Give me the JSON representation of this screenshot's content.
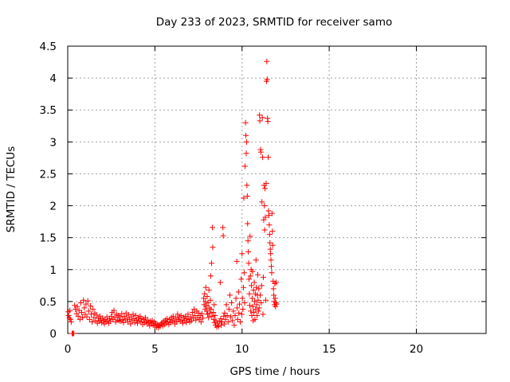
{
  "chart_data": {
    "type": "scatter",
    "title": "Day 233 of 2023, SRMTID for receiver samo",
    "xlabel": "GPS time / hours",
    "ylabel": "SRMTID / TECUs",
    "xlim": [
      0,
      24
    ],
    "ylim": [
      0,
      4.5
    ],
    "xticks": [
      0,
      5,
      10,
      15,
      20
    ],
    "xtick_labels": [
      "0",
      "5",
      "10",
      "15",
      "20"
    ],
    "yticks": [
      0,
      0.5,
      1,
      1.5,
      2,
      2.5,
      3,
      3.5,
      4,
      4.5
    ],
    "ytick_labels": [
      "0",
      "0.5",
      "1",
      "1.5",
      "2",
      "2.5",
      "3",
      "3.5",
      "4",
      "4.5"
    ],
    "grid": true,
    "marker": "+",
    "color": "#ff0000",
    "series": [
      {
        "name": "SRMTID",
        "points": [
          [
            0.03,
            0.34
          ],
          [
            0.05,
            0.28
          ],
          [
            0.1,
            0.24
          ],
          [
            0.12,
            0.36
          ],
          [
            0.15,
            0.22
          ],
          [
            0.2,
            0.18
          ],
          [
            0.25,
            0.0
          ],
          [
            0.3,
            0.0
          ],
          [
            0.35,
            0.0
          ],
          [
            0.4,
            0.44
          ],
          [
            0.45,
            0.38
          ],
          [
            0.5,
            0.31
          ],
          [
            0.55,
            0.42
          ],
          [
            0.6,
            0.27
          ],
          [
            0.65,
            0.36
          ],
          [
            0.7,
            0.22
          ],
          [
            0.75,
            0.48
          ],
          [
            0.8,
            0.33
          ],
          [
            0.85,
            0.25
          ],
          [
            0.9,
            0.52
          ],
          [
            0.95,
            0.4
          ],
          [
            1.0,
            0.3
          ],
          [
            1.05,
            0.46
          ],
          [
            1.1,
            0.26
          ],
          [
            1.15,
            0.51
          ],
          [
            1.2,
            0.35
          ],
          [
            1.25,
            0.22
          ],
          [
            1.3,
            0.43
          ],
          [
            1.35,
            0.3
          ],
          [
            1.4,
            0.18
          ],
          [
            1.45,
            0.38
          ],
          [
            1.5,
            0.25
          ],
          [
            1.55,
            0.32
          ],
          [
            1.6,
            0.2
          ],
          [
            1.65,
            0.29
          ],
          [
            1.7,
            0.16
          ],
          [
            1.75,
            0.24
          ],
          [
            1.8,
            0.19
          ],
          [
            1.85,
            0.27
          ],
          [
            1.9,
            0.21
          ],
          [
            1.95,
            0.17
          ],
          [
            2.0,
            0.24
          ],
          [
            2.05,
            0.2
          ],
          [
            2.1,
            0.15
          ],
          [
            2.15,
            0.22
          ],
          [
            2.2,
            0.18
          ],
          [
            2.25,
            0.26
          ],
          [
            2.3,
            0.2
          ],
          [
            2.35,
            0.16
          ],
          [
            2.4,
            0.23
          ],
          [
            2.45,
            0.19
          ],
          [
            2.5,
            0.27
          ],
          [
            2.55,
            0.33
          ],
          [
            2.6,
            0.22
          ],
          [
            2.65,
            0.36
          ],
          [
            2.7,
            0.25
          ],
          [
            2.75,
            0.18
          ],
          [
            2.8,
            0.3
          ],
          [
            2.85,
            0.21
          ],
          [
            2.9,
            0.28
          ],
          [
            2.95,
            0.2
          ],
          [
            3.0,
            0.26
          ],
          [
            3.05,
            0.19
          ],
          [
            3.1,
            0.31
          ],
          [
            3.15,
            0.22
          ],
          [
            3.2,
            0.17
          ],
          [
            3.25,
            0.27
          ],
          [
            3.3,
            0.21
          ],
          [
            3.35,
            0.32
          ],
          [
            3.4,
            0.24
          ],
          [
            3.45,
            0.18
          ],
          [
            3.5,
            0.29
          ],
          [
            3.55,
            0.22
          ],
          [
            3.6,
            0.15
          ],
          [
            3.65,
            0.26
          ],
          [
            3.7,
            0.2
          ],
          [
            3.75,
            0.3
          ],
          [
            3.8,
            0.23
          ],
          [
            3.85,
            0.17
          ],
          [
            3.9,
            0.28
          ],
          [
            3.95,
            0.21
          ],
          [
            4.0,
            0.16
          ],
          [
            4.05,
            0.25
          ],
          [
            4.1,
            0.2
          ],
          [
            4.15,
            0.27
          ],
          [
            4.2,
            0.18
          ],
          [
            4.25,
            0.23
          ],
          [
            4.3,
            0.14
          ],
          [
            4.35,
            0.22
          ],
          [
            4.4,
            0.17
          ],
          [
            4.45,
            0.25
          ],
          [
            4.5,
            0.19
          ],
          [
            4.55,
            0.15
          ],
          [
            4.6,
            0.21
          ],
          [
            4.65,
            0.17
          ],
          [
            4.7,
            0.12
          ],
          [
            4.75,
            0.19
          ],
          [
            4.8,
            0.15
          ],
          [
            4.85,
            0.2
          ],
          [
            4.9,
            0.13
          ],
          [
            4.95,
            0.18
          ],
          [
            5.0,
            0.12
          ],
          [
            5.05,
            0.16
          ],
          [
            5.1,
            0.1
          ],
          [
            5.15,
            0.14
          ],
          [
            5.2,
            0.09
          ],
          [
            5.25,
            0.13
          ],
          [
            5.3,
            0.11
          ],
          [
            5.35,
            0.15
          ],
          [
            5.4,
            0.17
          ],
          [
            5.45,
            0.12
          ],
          [
            5.5,
            0.19
          ],
          [
            5.55,
            0.14
          ],
          [
            5.6,
            0.21
          ],
          [
            5.65,
            0.16
          ],
          [
            5.7,
            0.23
          ],
          [
            5.75,
            0.18
          ],
          [
            5.8,
            0.14
          ],
          [
            5.85,
            0.22
          ],
          [
            5.9,
            0.17
          ],
          [
            5.95,
            0.25
          ],
          [
            6.0,
            0.19
          ],
          [
            6.05,
            0.27
          ],
          [
            6.1,
            0.21
          ],
          [
            6.15,
            0.15
          ],
          [
            6.2,
            0.24
          ],
          [
            6.25,
            0.18
          ],
          [
            6.3,
            0.3
          ],
          [
            6.35,
            0.22
          ],
          [
            6.4,
            0.26
          ],
          [
            6.45,
            0.19
          ],
          [
            6.5,
            0.28
          ],
          [
            6.55,
            0.21
          ],
          [
            6.6,
            0.16
          ],
          [
            6.65,
            0.25
          ],
          [
            6.7,
            0.2
          ],
          [
            6.75,
            0.27
          ],
          [
            6.8,
            0.17
          ],
          [
            6.85,
            0.23
          ],
          [
            6.9,
            0.3
          ],
          [
            6.95,
            0.22
          ],
          [
            7.0,
            0.18
          ],
          [
            7.05,
            0.26
          ],
          [
            7.1,
            0.2
          ],
          [
            7.15,
            0.33
          ],
          [
            7.2,
            0.24
          ],
          [
            7.25,
            0.38
          ],
          [
            7.3,
            0.28
          ],
          [
            7.35,
            0.21
          ],
          [
            7.4,
            0.35
          ],
          [
            7.45,
            0.25
          ],
          [
            7.5,
            0.32
          ],
          [
            7.55,
            0.22
          ],
          [
            7.6,
            0.28
          ],
          [
            7.65,
            0.18
          ],
          [
            7.7,
            0.31
          ],
          [
            7.75,
            0.24
          ],
          [
            7.8,
            0.55
          ],
          [
            7.82,
            0.45
          ],
          [
            7.85,
            0.62
          ],
          [
            7.88,
            0.38
          ],
          [
            7.9,
            0.5
          ],
          [
            7.92,
            0.72
          ],
          [
            7.95,
            0.43
          ],
          [
            7.98,
            0.35
          ],
          [
            8.0,
            0.58
          ],
          [
            8.02,
            0.3
          ],
          [
            8.05,
            0.48
          ],
          [
            8.08,
            0.25
          ],
          [
            8.1,
            0.68
          ],
          [
            8.12,
            0.4
          ],
          [
            8.15,
            0.32
          ],
          [
            8.18,
            0.52
          ],
          [
            8.2,
            0.9
          ],
          [
            8.22,
            0.38
          ],
          [
            8.25,
            1.1
          ],
          [
            8.27,
            0.27
          ],
          [
            8.3,
            1.66
          ],
          [
            8.32,
            1.35
          ],
          [
            8.35,
            0.33
          ],
          [
            8.38,
            0.22
          ],
          [
            8.4,
            0.45
          ],
          [
            8.42,
            0.17
          ],
          [
            8.45,
            0.28
          ],
          [
            8.48,
            0.13
          ],
          [
            8.5,
            0.2
          ],
          [
            8.55,
            0.1
          ],
          [
            8.6,
            0.16
          ],
          [
            8.65,
            0.11
          ],
          [
            8.7,
            0.19
          ],
          [
            8.75,
            0.8
          ],
          [
            8.78,
            0.23
          ],
          [
            8.8,
            0.13
          ],
          [
            8.85,
            0.18
          ],
          [
            8.9,
            1.66
          ],
          [
            8.92,
            1.53
          ],
          [
            8.95,
            0.27
          ],
          [
            8.98,
            0.15
          ],
          [
            9.0,
            0.32
          ],
          [
            9.05,
            0.22
          ],
          [
            9.1,
            0.45
          ],
          [
            9.15,
            0.28
          ],
          [
            9.2,
            0.18
          ],
          [
            9.25,
            0.38
          ],
          [
            9.3,
            0.6
          ],
          [
            9.35,
            0.26
          ],
          [
            9.4,
            0.48
          ],
          [
            9.45,
            0.2
          ],
          [
            9.5,
            0.35
          ],
          [
            9.55,
            0.13
          ],
          [
            9.6,
            0.28
          ],
          [
            9.65,
            0.55
          ],
          [
            9.7,
            1.13
          ],
          [
            9.72,
            0.4
          ],
          [
            9.75,
            0.22
          ],
          [
            9.8,
            0.65
          ],
          [
            9.82,
            0.32
          ],
          [
            9.85,
            0.46
          ],
          [
            9.9,
            0.18
          ],
          [
            9.95,
            0.85
          ],
          [
            9.98,
            0.3
          ],
          [
            10.0,
            1.25
          ],
          [
            10.02,
            0.55
          ],
          [
            10.05,
            0.38
          ],
          [
            10.08,
            0.72
          ],
          [
            10.1,
            2.12
          ],
          [
            10.12,
            0.95
          ],
          [
            10.15,
            0.48
          ],
          [
            10.17,
            2.62
          ],
          [
            10.2,
            3.3
          ],
          [
            10.22,
            3.1
          ],
          [
            10.24,
            2.82
          ],
          [
            10.26,
            3.0
          ],
          [
            10.28,
            2.32
          ],
          [
            10.3,
            2.15
          ],
          [
            10.32,
            1.72
          ],
          [
            10.34,
            1.45
          ],
          [
            10.36,
            1.28
          ],
          [
            10.38,
            1.1
          ],
          [
            10.4,
            0.85
          ],
          [
            10.42,
            0.62
          ],
          [
            10.44,
            0.44
          ],
          [
            10.46,
            1.52
          ],
          [
            10.48,
            0.9
          ],
          [
            10.5,
            0.35
          ],
          [
            10.52,
            1.0
          ],
          [
            10.54,
            0.75
          ],
          [
            10.56,
            0.28
          ],
          [
            10.58,
            0.55
          ],
          [
            10.6,
            0.97
          ],
          [
            10.62,
            0.42
          ],
          [
            10.64,
            0.2
          ],
          [
            10.66,
            0.68
          ],
          [
            10.68,
            0.33
          ],
          [
            10.7,
            0.8
          ],
          [
            10.72,
            0.5
          ],
          [
            10.74,
            0.22
          ],
          [
            10.76,
            0.62
          ],
          [
            10.78,
            0.38
          ],
          [
            10.8,
            1.15
          ],
          [
            10.82,
            0.72
          ],
          [
            10.84,
            0.45
          ],
          [
            10.86,
            0.28
          ],
          [
            10.88,
            0.6
          ],
          [
            10.9,
            0.92
          ],
          [
            10.92,
            0.52
          ],
          [
            10.94,
            0.35
          ],
          [
            10.96,
            0.7
          ],
          [
            10.98,
            0.4
          ],
          [
            11.0,
            3.42
          ],
          [
            11.02,
            3.33
          ],
          [
            11.04,
            0.6
          ],
          [
            11.06,
            2.88
          ],
          [
            11.08,
            2.84
          ],
          [
            11.1,
            0.48
          ],
          [
            11.12,
            0.75
          ],
          [
            11.14,
            2.06
          ],
          [
            11.16,
            3.38
          ],
          [
            11.18,
            2.76
          ],
          [
            11.2,
            0.3
          ],
          [
            11.22,
            0.88
          ],
          [
            11.24,
            1.78
          ],
          [
            11.26,
            2.32
          ],
          [
            11.28,
            2.0
          ],
          [
            11.3,
            1.62
          ],
          [
            11.32,
            2.27
          ],
          [
            11.34,
            1.82
          ],
          [
            11.36,
            0.52
          ],
          [
            11.38,
            2.35
          ],
          [
            11.4,
            3.95
          ],
          [
            11.42,
            4.26
          ],
          [
            11.44,
            3.98
          ],
          [
            11.46,
            3.37
          ],
          [
            11.48,
            3.32
          ],
          [
            11.5,
            2.76
          ],
          [
            11.52,
            1.92
          ],
          [
            11.54,
            1.85
          ],
          [
            11.56,
            1.7
          ],
          [
            11.58,
            1.55
          ],
          [
            11.6,
            1.42
          ],
          [
            11.62,
            1.32
          ],
          [
            11.64,
            1.25
          ],
          [
            11.66,
            1.15
          ],
          [
            11.68,
            1.05
          ],
          [
            11.7,
            0.95
          ],
          [
            11.72,
            1.88
          ],
          [
            11.74,
            1.6
          ],
          [
            11.76,
            1.38
          ],
          [
            11.78,
            0.82
          ],
          [
            11.8,
            0.7
          ],
          [
            11.82,
            0.6
          ],
          [
            11.84,
            0.5
          ],
          [
            11.86,
            0.45
          ],
          [
            11.88,
            0.78
          ],
          [
            11.9,
            0.55
          ],
          [
            11.92,
            0.42
          ],
          [
            11.94,
            0.48
          ],
          [
            11.96,
            0.8
          ],
          [
            11.98,
            0.46
          ]
        ]
      }
    ]
  }
}
